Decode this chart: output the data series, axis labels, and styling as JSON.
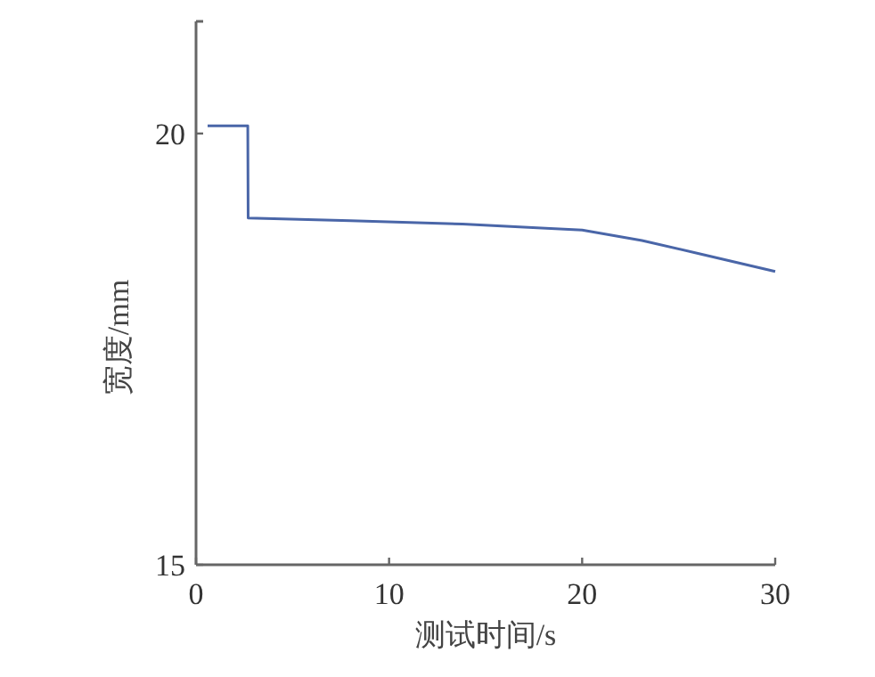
{
  "chart_data": {
    "type": "line",
    "xlabel": "测试时间/s",
    "ylabel": "宽度/mm",
    "x": [
      0.6,
      2.68,
      2.7,
      8,
      13.8,
      20.0,
      23.1,
      26.2,
      30
    ],
    "series": [
      {
        "color": "#4a66a8",
        "values": [
          20.09,
          20.09,
          19.02,
          18.99,
          18.95,
          18.88,
          18.76,
          18.6,
          18.4
        ]
      }
    ],
    "xlim": [
      0,
      30
    ],
    "xticks": [
      0,
      10,
      20,
      30
    ],
    "ylim": [
      15,
      21.3
    ],
    "yticks": [
      15,
      20
    ],
    "grid": false,
    "marker": "none",
    "line_style": "solid"
  }
}
